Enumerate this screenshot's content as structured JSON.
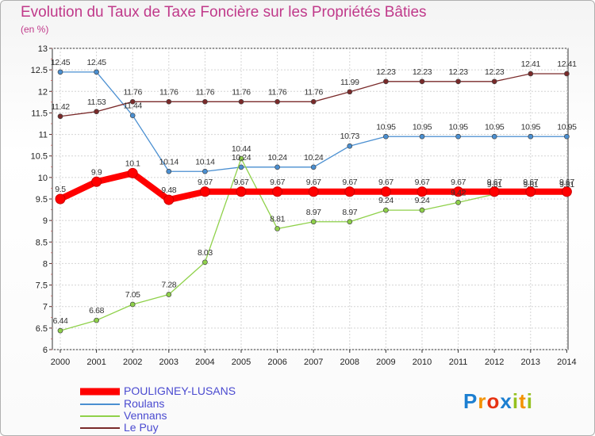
{
  "title": "Evolution du Taux de Taxe Foncière sur les Propriétés Bâties",
  "subtitle": "(en %)",
  "logo": {
    "text": "Proxiti",
    "letters": [
      {
        "ch": "P",
        "color": "#1c7fd1"
      },
      {
        "ch": "r",
        "color": "#f39200"
      },
      {
        "ch": "o",
        "color": "#e63312"
      },
      {
        "ch": "x",
        "color": "#1c7fd1"
      },
      {
        "ch": "i",
        "color": "#95c11f"
      },
      {
        "ch": "t",
        "color": "#f39200"
      },
      {
        "ch": "i",
        "color": "#95c11f"
      }
    ]
  },
  "chart_data": {
    "type": "line",
    "title": "Evolution du Taux de Taxe Foncière sur les Propriétés Bâties",
    "ylabel": "(en %)",
    "xlabel": "",
    "ylim": [
      6,
      13
    ],
    "grid": true,
    "legend": "bottom-left",
    "x": [
      "2000",
      "2001",
      "2002",
      "2003",
      "2004",
      "2005",
      "2006",
      "2007",
      "2008",
      "2009",
      "2010",
      "2011",
      "2012",
      "2013",
      "2014"
    ],
    "yticks": [
      "6",
      "6.5",
      "7",
      "7.5",
      "8",
      "8.5",
      "9",
      "9.5",
      "10",
      "10.5",
      "11",
      "11.5",
      "12",
      "12.5",
      "13"
    ],
    "series": [
      {
        "name": "POULIGNEY-LUSANS",
        "color": "#ff0000",
        "width": 8,
        "marker": 6,
        "values": [
          9.5,
          9.9,
          10.1,
          9.48,
          9.67,
          9.67,
          9.67,
          9.67,
          9.67,
          9.67,
          9.67,
          9.67,
          9.67,
          9.67,
          9.67
        ],
        "labels": [
          "9.5",
          "9.9",
          "10.1",
          "9.48",
          "9.67",
          "9.67",
          "9.67",
          "9.67",
          "9.67",
          "9.67",
          "9.67",
          "9.67",
          "9.67",
          "9.67",
          "9.67"
        ]
      },
      {
        "name": "Roulans",
        "color": "#4a8fd1",
        "width": 1.3,
        "marker": 3,
        "values": [
          12.45,
          12.45,
          11.44,
          10.14,
          10.14,
          10.24,
          10.24,
          10.24,
          10.73,
          10.95,
          10.95,
          10.95,
          10.95,
          10.95,
          10.95
        ],
        "labels": [
          "12.45",
          "12.45",
          "11.44",
          "10.14",
          "10.14",
          "10.24",
          "10.24",
          "10.24",
          "10.73",
          "10.95",
          "10.95",
          "10.95",
          "10.95",
          "10.95",
          "10.95"
        ]
      },
      {
        "name": "Vennans",
        "color": "#8fd14a",
        "width": 1.3,
        "marker": 3,
        "values": [
          6.44,
          6.68,
          7.05,
          7.28,
          8.03,
          10.44,
          8.81,
          8.97,
          8.97,
          9.24,
          9.24,
          9.42,
          9.61,
          9.61,
          9.61
        ],
        "labels": [
          "6.44",
          "6.68",
          "7.05",
          "7.28",
          "8.03",
          "10.44",
          "8.81",
          "8.97",
          "8.97",
          "9.24",
          "9.24",
          "9.42",
          "9.61",
          "9.61",
          "9.61"
        ]
      },
      {
        "name": "Le Puy",
        "color": "#7a2a2a",
        "width": 1.3,
        "marker": 3,
        "values": [
          11.42,
          11.53,
          11.76,
          11.76,
          11.76,
          11.76,
          11.76,
          11.76,
          11.99,
          12.23,
          12.23,
          12.23,
          12.23,
          12.41,
          12.41
        ],
        "labels": [
          "11.42",
          "11.53",
          "11.76",
          "11.76",
          "11.76",
          "11.76",
          "11.76",
          "11.76",
          "11.99",
          "12.23",
          "12.23",
          "12.23",
          "12.23",
          "12.41",
          "12.41"
        ]
      }
    ]
  }
}
